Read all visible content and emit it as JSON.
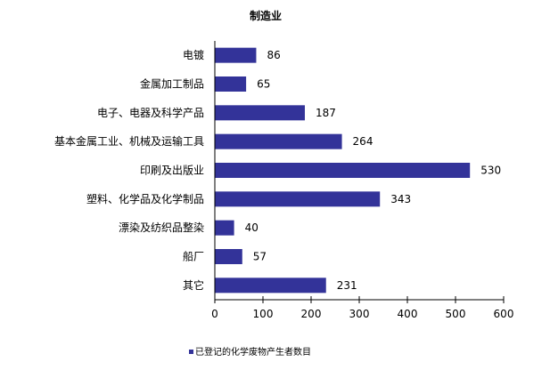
{
  "chart_data": {
    "type": "bar",
    "orientation": "horizontal",
    "title": "制造业",
    "categories": [
      "电镀",
      "金属加工制品",
      "电子、电器及科学产品",
      "基本金属工业、机械及运输工具",
      "印刷及出版业",
      "塑料、化学品及化学制品",
      "漂染及纺织品整染",
      "船厂",
      "其它"
    ],
    "series": [
      {
        "name": "已登记的化学废物产生者数目",
        "values": [
          86,
          65,
          187,
          264,
          530,
          343,
          40,
          57,
          231
        ],
        "color": "#333399"
      }
    ],
    "xlim": [
      0,
      600
    ],
    "xticks": [
      0,
      100,
      200,
      300,
      400,
      500,
      600
    ],
    "grid": false,
    "legend": "bottom-left",
    "data_labels": true
  }
}
